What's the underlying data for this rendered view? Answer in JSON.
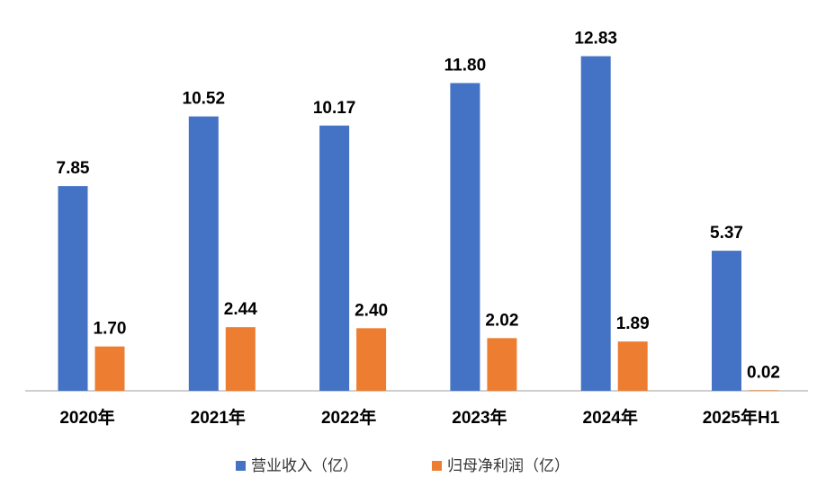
{
  "chart_data": {
    "type": "bar",
    "title": "",
    "xlabel": "",
    "ylabel": "",
    "ylim": [
      0,
      14
    ],
    "grid": false,
    "legend_position": "bottom",
    "categories": [
      "2020年",
      "2021年",
      "2022年",
      "2023年",
      "2024年",
      "2025年H1"
    ],
    "series": [
      {
        "name": "营业收入（亿）",
        "color": "#4472C4",
        "values": [
          7.85,
          10.52,
          10.17,
          11.8,
          12.83,
          5.37
        ],
        "labels": [
          "7.85",
          "10.52",
          "10.17",
          "11.80",
          "12.83",
          "5.37"
        ]
      },
      {
        "name": "归母净利润（亿）",
        "color": "#ED7D31",
        "values": [
          1.7,
          2.44,
          2.4,
          2.02,
          1.89,
          0.02
        ],
        "labels": [
          "1.70",
          "2.44",
          "2.40",
          "2.02",
          "1.89",
          "0.02"
        ]
      }
    ]
  },
  "colors": {
    "axis": "#BFBFBF",
    "text": "#000000",
    "background": "#FFFFFF"
  }
}
